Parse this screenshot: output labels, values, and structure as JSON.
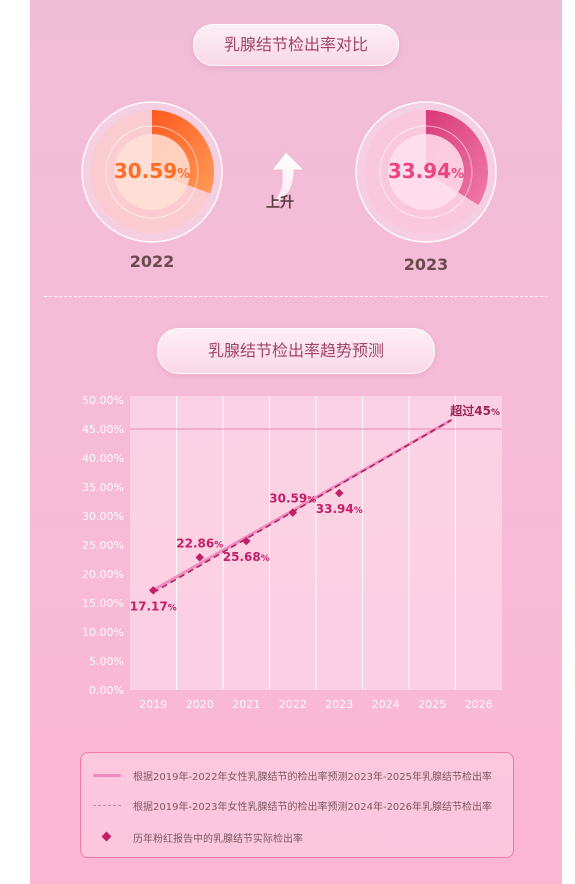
{
  "section1": {
    "title": "乳腺结节检出率对比",
    "left": {
      "year": "2022",
      "value": 30.59,
      "value_text": "30.59",
      "unit": "%",
      "color": "#ff6d27"
    },
    "right": {
      "year": "2023",
      "value": 33.94,
      "value_text": "33.94",
      "unit": "%",
      "color": "#e8467f"
    },
    "change_label": "上升"
  },
  "section2": {
    "title": "乳腺结节检出率趋势预测"
  },
  "chart_data": {
    "type": "line",
    "x": [
      "2019",
      "2020",
      "2021",
      "2022",
      "2023",
      "2024",
      "2025",
      "2026"
    ],
    "ylim": [
      0,
      50
    ],
    "yticks": [
      "0.00%",
      "5.00%",
      "10.00%",
      "15.00%",
      "20.00%",
      "25.00%",
      "30.00%",
      "35.00%",
      "40.00%",
      "45.00%",
      "50.00%"
    ],
    "reference_line": 45,
    "grid": true,
    "series": [
      {
        "name": "历年粉红报告中的乳腺结节实际检出率",
        "style": "points",
        "color": "#c31f68",
        "points": [
          {
            "x": "2019",
            "y": 17.17,
            "label": "17.17",
            "label_pos": "below"
          },
          {
            "x": "2020",
            "y": 22.86,
            "label": "22.86",
            "label_pos": "above"
          },
          {
            "x": "2021",
            "y": 25.68,
            "label": "25.68",
            "label_pos": "below"
          },
          {
            "x": "2022",
            "y": 30.59,
            "label": "30.59",
            "label_pos": "above"
          },
          {
            "x": "2023",
            "y": 33.94,
            "label": "33.94",
            "label_pos": "below"
          }
        ]
      },
      {
        "name": "根据2019年-2022年女性乳腺结节的检出率预测2023年-2025年乳腺结节检出率",
        "style": "solid",
        "color": "#f08ac0",
        "points": [
          {
            "x": "2019",
            "y": 17.2
          },
          {
            "x": "2025.4",
            "y": 46.5
          }
        ]
      },
      {
        "name": "根据2019年-2023年女性乳腺结节的检出率预测2024年-2026年乳腺结节检出率",
        "style": "dashed",
        "color": "#a8285a",
        "points": [
          {
            "x": "2019",
            "y": 16.8
          },
          {
            "x": "2025.4",
            "y": 46.5
          }
        ]
      }
    ],
    "annotation": {
      "text": "超过45",
      "unit": "%"
    },
    "point_unit": "%"
  },
  "legend": [
    {
      "kind": "solid",
      "text": "根据2019年-2022年女性乳腺结节的检出率预测2023年-2025年乳腺结节检出率"
    },
    {
      "kind": "dashed",
      "text": "根据2019年-2023年女性乳腺结节的检出率预测2024年-2026年乳腺结节检出率"
    },
    {
      "kind": "point",
      "text": "历年粉红报告中的乳腺结节实际检出率"
    }
  ]
}
